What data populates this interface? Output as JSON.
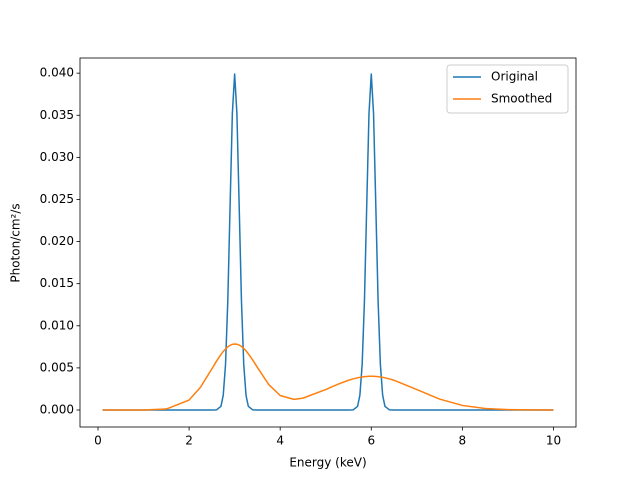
{
  "chart_data": {
    "type": "line",
    "xlabel": "Energy (keV)",
    "ylabel": "Photon/cm²/s",
    "x": [
      0.1,
      0.5,
      1.0,
      1.5,
      2.0,
      2.25,
      2.5,
      2.6,
      2.7,
      2.75,
      2.8,
      2.85,
      2.9,
      2.95,
      3.0,
      3.05,
      3.1,
      3.15,
      3.2,
      3.25,
      3.3,
      3.4,
      3.5,
      3.75,
      4.0,
      4.3,
      4.5,
      5.0,
      5.25,
      5.5,
      5.6,
      5.7,
      5.75,
      5.8,
      5.85,
      5.9,
      5.95,
      6.0,
      6.05,
      6.1,
      6.15,
      6.2,
      6.25,
      6.3,
      6.4,
      6.5,
      7.0,
      7.5,
      8.0,
      8.5,
      9.0,
      9.5,
      10.0
    ],
    "series": [
      {
        "name": "Original",
        "color": "#1f77b4",
        "values": [
          0,
          0,
          0,
          0,
          0,
          0,
          0,
          1e-05,
          0.00044,
          0.00175,
          0.0054,
          0.01295,
          0.0242,
          0.0352,
          0.0399,
          0.0352,
          0.0242,
          0.01295,
          0.0054,
          0.00175,
          0.00044,
          1e-05,
          0,
          0,
          0,
          0,
          0,
          0,
          0,
          0,
          1e-05,
          0.00044,
          0.00175,
          0.0054,
          0.01295,
          0.0242,
          0.0352,
          0.0399,
          0.0352,
          0.0242,
          0.01295,
          0.0054,
          0.00175,
          0.00044,
          1e-05,
          0,
          0,
          0,
          0,
          0,
          0,
          0,
          0
        ]
      },
      {
        "name": "Smoothed",
        "color": "#ff7f0e",
        "values": [
          0,
          0,
          4e-06,
          0.00011,
          0.00118,
          0.0027,
          0.00488,
          0.00578,
          0.0066,
          0.00695,
          0.00725,
          0.0075,
          0.00768,
          0.0078,
          0.00784,
          0.00781,
          0.00771,
          0.00755,
          0.00731,
          0.00702,
          0.00668,
          0.00591,
          0.00505,
          0.00302,
          0.00172,
          0.00126,
          0.00141,
          0.00243,
          0.00302,
          0.00353,
          0.00369,
          0.00382,
          0.00388,
          0.00392,
          0.00396,
          0.00398,
          0.004,
          0.004,
          0.004,
          0.00398,
          0.00396,
          0.00392,
          0.00388,
          0.00382,
          0.00369,
          0.00353,
          0.00243,
          0.0013,
          0.00054,
          0.000176,
          4.4e-05,
          8.8e-06,
          1.3e-06
        ]
      }
    ],
    "xlim": [
      -0.395,
      10.495
    ],
    "xticks": [
      0,
      2,
      4,
      6,
      8,
      10
    ],
    "ylim": [
      -0.00202,
      0.0418
    ],
    "yticks": [
      {
        "value": 0,
        "label": "0.000"
      },
      {
        "value": 0.005,
        "label": "0.005"
      },
      {
        "value": 0.01,
        "label": "0.010"
      },
      {
        "value": 0.015,
        "label": "0.015"
      },
      {
        "value": 0.02,
        "label": "0.020"
      },
      {
        "value": 0.025,
        "label": "0.025"
      },
      {
        "value": 0.03,
        "label": "0.030"
      },
      {
        "value": 0.035,
        "label": "0.035"
      },
      {
        "value": 0.04,
        "label": "0.040"
      }
    ],
    "legend": "upper right"
  }
}
